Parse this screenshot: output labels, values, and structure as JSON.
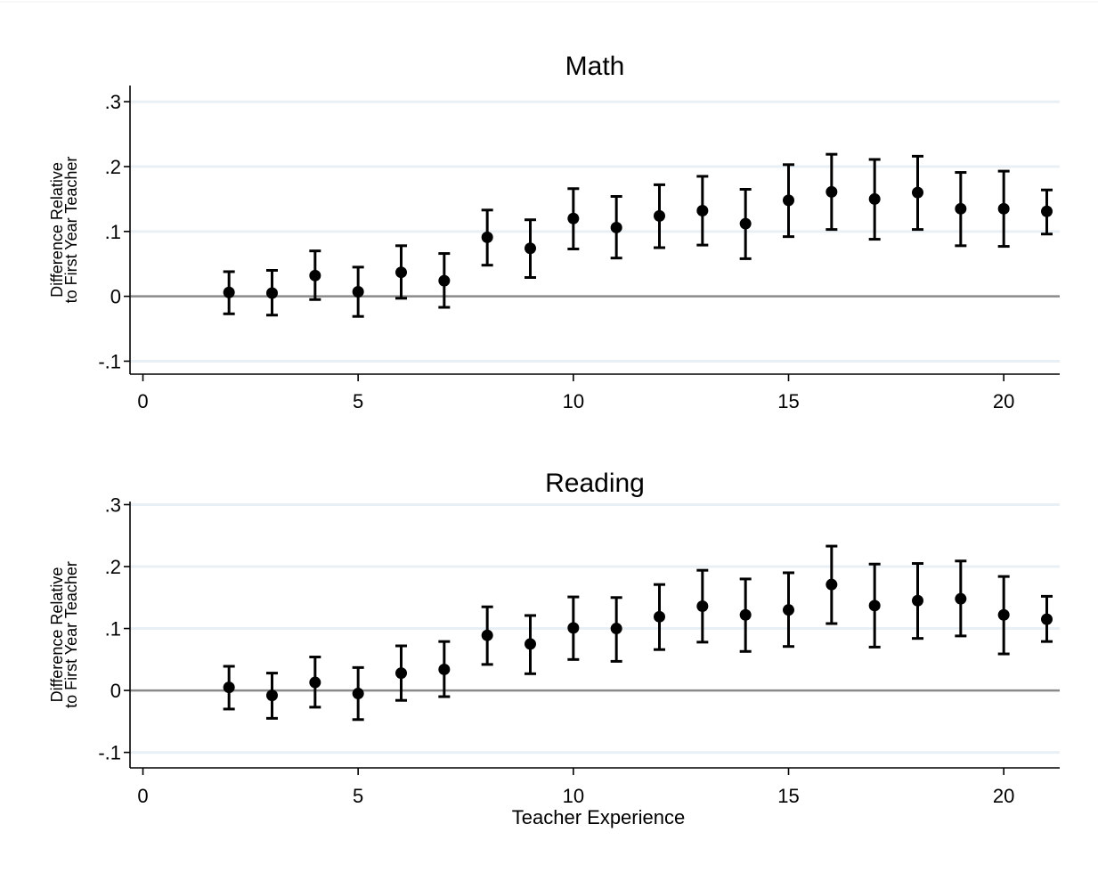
{
  "chart_data": [
    {
      "type": "scatter",
      "title": "Math",
      "ylabel_lines": [
        "Difference Relative",
        "to First Year Teacher"
      ],
      "xlabel": "",
      "xlim": [
        -0.3,
        21.3
      ],
      "ylim": [
        -0.12,
        0.325
      ],
      "xticks": [
        0,
        5,
        10,
        15,
        20
      ],
      "xtick_labels": [
        "0",
        "5",
        "10",
        "15",
        "20"
      ],
      "yticks": [
        -0.1,
        0,
        0.1,
        0.2,
        0.3
      ],
      "ytick_labels": [
        "-.1",
        "0",
        ".1",
        ".2",
        ".3"
      ],
      "reference_line_y": 0,
      "grid": true,
      "x": [
        2,
        3,
        4,
        5,
        6,
        7,
        8,
        9,
        10,
        11,
        12,
        13,
        14,
        15,
        16,
        17,
        18,
        19,
        20,
        21
      ],
      "y": [
        0.006,
        0.005,
        0.032,
        0.007,
        0.037,
        0.024,
        0.091,
        0.074,
        0.12,
        0.106,
        0.124,
        0.132,
        0.112,
        0.148,
        0.161,
        0.15,
        0.16,
        0.135,
        0.135,
        0.131
      ],
      "ci_low": [
        -0.027,
        -0.029,
        -0.005,
        -0.031,
        -0.003,
        -0.017,
        0.048,
        0.029,
        0.073,
        0.059,
        0.075,
        0.079,
        0.058,
        0.092,
        0.103,
        0.088,
        0.103,
        0.078,
        0.077,
        0.096
      ],
      "ci_high": [
        0.038,
        0.04,
        0.07,
        0.045,
        0.078,
        0.066,
        0.133,
        0.118,
        0.166,
        0.154,
        0.172,
        0.185,
        0.165,
        0.203,
        0.219,
        0.211,
        0.216,
        0.191,
        0.193,
        0.164
      ]
    },
    {
      "type": "scatter",
      "title": "Reading",
      "ylabel_lines": [
        "Difference Relative",
        "to First Year Teacher"
      ],
      "xlabel": "Teacher Experience",
      "xlim": [
        -0.3,
        21.3
      ],
      "ylim": [
        -0.125,
        0.305
      ],
      "xticks": [
        0,
        5,
        10,
        15,
        20
      ],
      "xtick_labels": [
        "0",
        "5",
        "10",
        "15",
        "20"
      ],
      "yticks": [
        -0.1,
        0,
        0.1,
        0.2,
        0.3
      ],
      "ytick_labels": [
        "-.1",
        "0",
        ".1",
        ".2",
        ".3"
      ],
      "reference_line_y": 0,
      "grid": true,
      "x": [
        2,
        3,
        4,
        5,
        6,
        7,
        8,
        9,
        10,
        11,
        12,
        13,
        14,
        15,
        16,
        17,
        18,
        19,
        20,
        21
      ],
      "y": [
        0.005,
        -0.008,
        0.013,
        -0.005,
        0.028,
        0.034,
        0.089,
        0.075,
        0.101,
        0.1,
        0.119,
        0.136,
        0.122,
        0.13,
        0.171,
        0.137,
        0.145,
        0.148,
        0.122,
        0.115
      ],
      "ci_low": [
        -0.03,
        -0.045,
        -0.027,
        -0.047,
        -0.016,
        -0.01,
        0.042,
        0.027,
        0.05,
        0.047,
        0.066,
        0.078,
        0.063,
        0.071,
        0.108,
        0.07,
        0.084,
        0.088,
        0.059,
        0.079
      ],
      "ci_high": [
        0.039,
        0.028,
        0.054,
        0.037,
        0.072,
        0.079,
        0.135,
        0.121,
        0.151,
        0.15,
        0.171,
        0.194,
        0.18,
        0.19,
        0.233,
        0.204,
        0.205,
        0.209,
        0.184,
        0.152
      ]
    }
  ]
}
